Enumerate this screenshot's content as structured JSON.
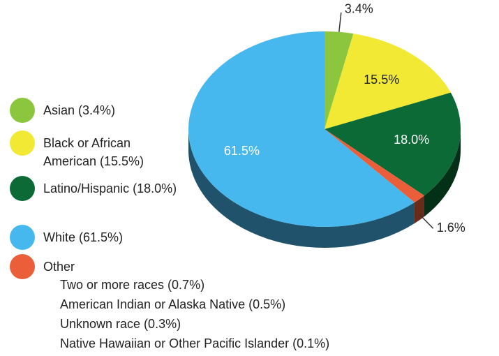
{
  "chart_data": {
    "type": "pie",
    "categories": [
      "Asian (3.4%)",
      "Black or African American (15.5%)",
      "Latino/Hispanic (18.0%)",
      "White (61.5%)",
      "Other"
    ],
    "values": [
      3.4,
      15.5,
      18.0,
      61.5,
      1.6
    ],
    "value_labels": [
      "3.4%",
      "15.5%",
      "18.0%",
      "61.5%",
      "1.6%"
    ],
    "colors": [
      "#8cc63f",
      "#f2e935",
      "#0c6a36",
      "#47b8ee",
      "#ea5f3a"
    ],
    "other_details": [
      "Two or more races (0.7%)",
      "American Indian or Alaska Native (0.5%)",
      "Unknown race (0.3%)",
      "Native Hawaiian or Other Pacific Islander (0.1%)"
    ]
  }
}
